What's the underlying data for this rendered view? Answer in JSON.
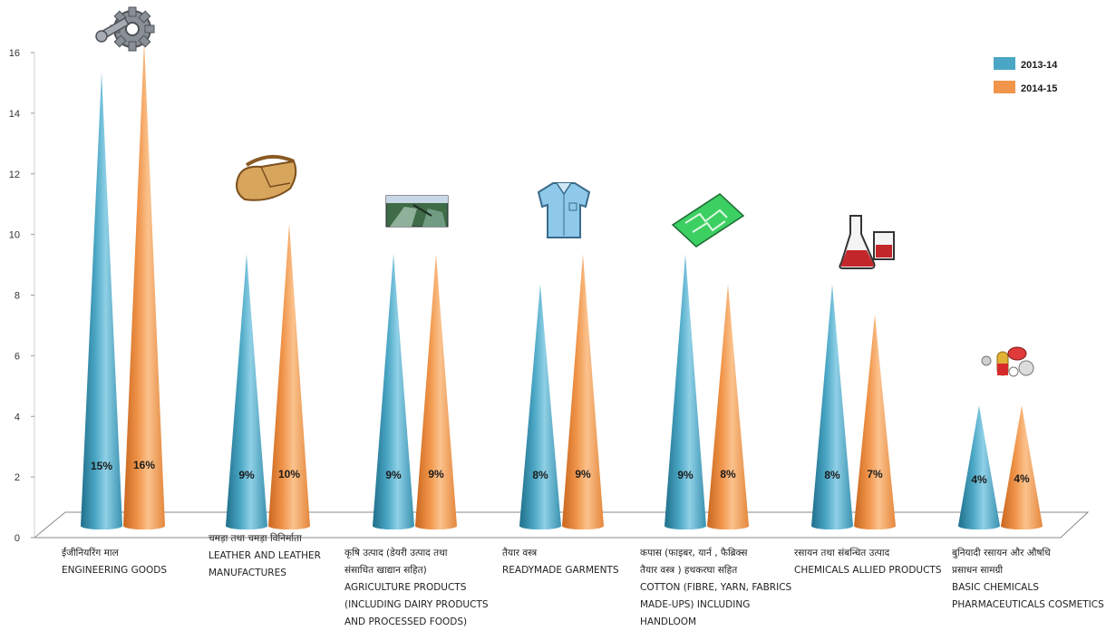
{
  "chart_data": {
    "type": "bar",
    "subtype": "3d-cone",
    "title": "",
    "xlabel": "",
    "ylabel": "",
    "ylim": [
      0,
      16
    ],
    "yticks": [
      "0",
      "2",
      "4",
      "6",
      "8",
      "10",
      "12",
      "14",
      "16"
    ],
    "legend_position": "top-right",
    "categories": [
      {
        "label_hi": "ईंजीनियरिंग माल",
        "label_en": [
          "ENGINEERING GOODS"
        ],
        "icon": "gear-wrench-icon"
      },
      {
        "label_hi": "चमड़ा तथा चमड़ा विनिर्माता",
        "label_en": [
          "LEATHER AND LEATHER",
          "MANUFACTURES"
        ],
        "icon": "leather-bag-icon"
      },
      {
        "label_hi": "कृषि उत्पाद (डेयरी उत्पाद तथा",
        "label_hi2": "संसाधित खाद्यान सहित)",
        "label_en": [
          "AGRICULTURE PRODUCTS",
          "(INCLUDING DAIRY PRODUCTS",
          "AND PROCESSED FOODS)"
        ],
        "icon": "farm-field-icon"
      },
      {
        "label_hi": "तैयार वस्त्र",
        "label_en": [
          "READYMADE GARMENTS"
        ],
        "icon": "shirt-icon"
      },
      {
        "label_hi": "कपास (फाइबर, यार्न , फैब्रिक्स",
        "label_hi2": "तैयार वस्त्र ) हथकरघा सहित",
        "label_en": [
          "COTTON (FIBRE, YARN, FABRICS",
          "MADE-UPS) INCLUDING",
          "HANDLOOM"
        ],
        "icon": "fabric-icon"
      },
      {
        "label_hi": "रसायन तथा संबन्धित उत्पाद",
        "label_en": [
          "CHEMICALS ALLIED PRODUCTS"
        ],
        "icon": "lab-flask-icon"
      },
      {
        "label_hi": "बुनियादी रसायन और औषधि",
        "label_hi2": "प्रसाधन सामग्री",
        "label_en": [
          "BASIC CHEMICALS",
          "PHARMACEUTICALS COSMETICS"
        ],
        "icon": "pills-icon"
      }
    ],
    "series": [
      {
        "name": "2013-14",
        "color": "#4aa6c4",
        "values": [
          15,
          9,
          9,
          8,
          9,
          8,
          4
        ],
        "labels": [
          "15%",
          "9%",
          "9%",
          "8%",
          "9%",
          "8%",
          "4%"
        ]
      },
      {
        "name": "2014-15",
        "color": "#f0954a",
        "values": [
          16,
          10,
          9,
          9,
          8,
          7,
          4
        ],
        "labels": [
          "16%",
          "10%",
          "9%",
          "9%",
          "8%",
          "7%",
          "4%"
        ]
      }
    ]
  }
}
